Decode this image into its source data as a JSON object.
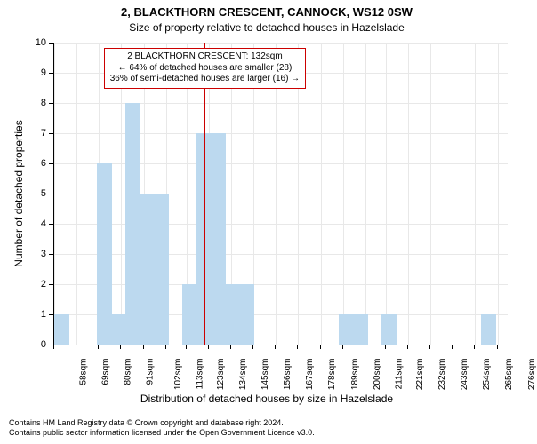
{
  "titles": {
    "main": "2, BLACKTHORN CRESCENT, CANNOCK, WS12 0SW",
    "sub": "Size of property relative to detached houses in Hazelslade"
  },
  "axes": {
    "y_label": "Number of detached properties",
    "x_label": "Distribution of detached houses by size in Hazelslade",
    "ylim": [
      0,
      10
    ],
    "yticks": [
      0,
      1,
      2,
      3,
      4,
      5,
      6,
      7,
      8,
      9,
      10
    ],
    "x_min": 58,
    "x_max": 281,
    "xtick_values": [
      58,
      69,
      80,
      91,
      102,
      113,
      123,
      134,
      145,
      156,
      167,
      178,
      189,
      200,
      211,
      221,
      232,
      243,
      254,
      265,
      276
    ],
    "xtick_labels": [
      "58sqm",
      "69sqm",
      "80sqm",
      "91sqm",
      "102sqm",
      "113sqm",
      "123sqm",
      "134sqm",
      "145sqm",
      "156sqm",
      "167sqm",
      "178sqm",
      "189sqm",
      "200sqm",
      "211sqm",
      "221sqm",
      "232sqm",
      "243sqm",
      "254sqm",
      "265sqm",
      "276sqm"
    ],
    "tick_label_fontsize": 10,
    "axis_label_fontsize": 12,
    "grid_color": "#e8e8e8"
  },
  "bars": {
    "color": "#bcd9ef",
    "width_sqm": 7.5,
    "items": [
      {
        "x0": 58,
        "h": 1
      },
      {
        "x0": 79,
        "h": 6
      },
      {
        "x0": 86,
        "h": 1
      },
      {
        "x0": 93,
        "h": 8
      },
      {
        "x0": 100,
        "h": 5
      },
      {
        "x0": 107,
        "h": 5
      },
      {
        "x0": 121,
        "h": 2
      },
      {
        "x0": 128,
        "h": 7
      },
      {
        "x0": 135,
        "h": 7
      },
      {
        "x0": 142,
        "h": 2
      },
      {
        "x0": 149,
        "h": 2
      },
      {
        "x0": 198,
        "h": 1
      },
      {
        "x0": 205,
        "h": 1
      },
      {
        "x0": 219,
        "h": 1
      },
      {
        "x0": 268,
        "h": 1
      }
    ]
  },
  "marker": {
    "value_sqm": 132,
    "color": "#cc0000"
  },
  "annotation": {
    "lines": {
      "l1": "2 BLACKTHORN CRESCENT: 132sqm",
      "l2": "← 64% of detached houses are smaller (28)",
      "l3": "36% of semi-detached houses are larger (16) →"
    },
    "border_color": "#cc0000",
    "fontsize": 10
  },
  "footer": {
    "l1": "Contains HM Land Registry data © Crown copyright and database right 2024.",
    "l2": "Contains public sector information licensed under the Open Government Licence v3.0."
  },
  "colors": {
    "background": "#ffffff",
    "text": "#000000",
    "axis": "#000000"
  }
}
